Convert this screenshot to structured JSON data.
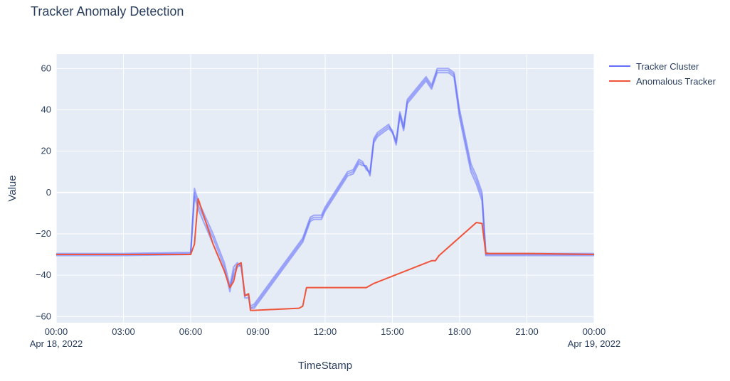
{
  "chart_data": {
    "type": "line",
    "title": "Tracker Anomaly Detection",
    "xlabel": "TimeStamp",
    "ylabel": "Value",
    "x_range": [
      "2022-04-18T00:00",
      "2022-04-19T00:00"
    ],
    "ylim": [
      -63,
      67
    ],
    "x_ticks": [
      {
        "value": "2022-04-18T00:00",
        "label": "00:00",
        "sublabel": "Apr 18, 2022"
      },
      {
        "value": "2022-04-18T03:00",
        "label": "03:00",
        "sublabel": ""
      },
      {
        "value": "2022-04-18T06:00",
        "label": "06:00",
        "sublabel": ""
      },
      {
        "value": "2022-04-18T09:00",
        "label": "09:00",
        "sublabel": ""
      },
      {
        "value": "2022-04-18T12:00",
        "label": "12:00",
        "sublabel": ""
      },
      {
        "value": "2022-04-18T15:00",
        "label": "15:00",
        "sublabel": ""
      },
      {
        "value": "2022-04-18T18:00",
        "label": "18:00",
        "sublabel": ""
      },
      {
        "value": "2022-04-18T21:00",
        "label": "21:00",
        "sublabel": ""
      },
      {
        "value": "2022-04-19T00:00",
        "label": "00:00",
        "sublabel": "Apr 19, 2022"
      }
    ],
    "y_ticks": [
      -60,
      -40,
      -20,
      0,
      20,
      40,
      60
    ],
    "grid": true,
    "legend_position": "top-right",
    "series": [
      {
        "name": "Tracker Cluster",
        "color": "#636efa",
        "opacity": 0.55,
        "lines": [
          {
            "x": [
              "2022-04-18T00:00",
              "2022-04-18T03:00",
              "2022-04-18T06:00",
              "2022-04-18T06:10",
              "2022-04-18T06:20",
              "2022-04-18T07:00",
              "2022-04-18T07:30",
              "2022-04-18T07:45",
              "2022-04-18T07:55",
              "2022-04-18T08:05",
              "2022-04-18T08:15",
              "2022-04-18T08:25",
              "2022-04-18T08:35",
              "2022-04-18T08:40",
              "2022-04-18T08:50",
              "2022-04-18T11:00",
              "2022-04-18T11:20",
              "2022-04-18T11:30",
              "2022-04-18T11:50",
              "2022-04-18T12:00",
              "2022-04-18T13:00",
              "2022-04-18T13:15",
              "2022-04-18T13:30",
              "2022-04-18T13:40",
              "2022-04-18T13:50",
              "2022-04-18T14:00",
              "2022-04-18T14:10",
              "2022-04-18T14:20",
              "2022-04-18T14:50",
              "2022-04-18T15:00",
              "2022-04-18T15:10",
              "2022-04-18T15:20",
              "2022-04-18T15:30",
              "2022-04-18T15:40",
              "2022-04-18T16:30",
              "2022-04-18T16:45",
              "2022-04-18T17:00",
              "2022-04-18T17:30",
              "2022-04-18T17:45",
              "2022-04-18T18:00",
              "2022-04-18T18:15",
              "2022-04-18T18:30",
              "2022-04-18T18:45",
              "2022-04-18T19:00",
              "2022-04-18T19:10",
              "2022-04-18T19:20",
              "2022-04-18T21:00",
              "2022-04-19T00:00"
            ],
            "y": [
              -29.5,
              -29.5,
              -29,
              2,
              -4,
              -20,
              -34,
              -45,
              -36,
              -34,
              -36,
              -49,
              -50,
              -55,
              -54,
              -22,
              -12,
              -11,
              -11,
              -7,
              10,
              11,
              16,
              15,
              11,
              10,
              26,
              29,
              33,
              29,
              25,
              39,
              32,
              45,
              56,
              52,
              60,
              60,
              58,
              40,
              27,
              14,
              8,
              0,
              -29,
              -29.5,
              -29.5,
              -29.5
            ]
          },
          {
            "x": [
              "2022-04-18T00:00",
              "2022-04-18T03:00",
              "2022-04-18T06:00",
              "2022-04-18T06:10",
              "2022-04-18T06:20",
              "2022-04-18T07:00",
              "2022-04-18T07:30",
              "2022-04-18T07:45",
              "2022-04-18T07:55",
              "2022-04-18T08:05",
              "2022-04-18T08:15",
              "2022-04-18T08:25",
              "2022-04-18T08:35",
              "2022-04-18T08:40",
              "2022-04-18T08:50",
              "2022-04-18T11:00",
              "2022-04-18T11:20",
              "2022-04-18T11:30",
              "2022-04-18T11:50",
              "2022-04-18T12:00",
              "2022-04-18T13:00",
              "2022-04-18T13:15",
              "2022-04-18T13:30",
              "2022-04-18T13:40",
              "2022-04-18T13:50",
              "2022-04-18T14:00",
              "2022-04-18T14:10",
              "2022-04-18T14:20",
              "2022-04-18T14:50",
              "2022-04-18T15:00",
              "2022-04-18T15:10",
              "2022-04-18T15:20",
              "2022-04-18T15:30",
              "2022-04-18T15:40",
              "2022-04-18T16:30",
              "2022-04-18T16:45",
              "2022-04-18T17:00",
              "2022-04-18T17:30",
              "2022-04-18T17:45",
              "2022-04-18T18:00",
              "2022-04-18T18:15",
              "2022-04-18T18:30",
              "2022-04-18T18:45",
              "2022-04-18T19:00",
              "2022-04-18T19:10",
              "2022-04-18T19:20",
              "2022-04-18T21:00",
              "2022-04-19T00:00"
            ],
            "y": [
              -30,
              -30,
              -29.5,
              0,
              -6,
              -22,
              -36,
              -48,
              -38,
              -35,
              -34,
              -50,
              -49,
              -56,
              -55,
              -23,
              -13,
              -12,
              -12,
              -8,
              9,
              10,
              15,
              14,
              12,
              9,
              25,
              28,
              32,
              30,
              24,
              38,
              31,
              44,
              55,
              51,
              59,
              59,
              57,
              38,
              25,
              12,
              6,
              -2,
              -30,
              -30,
              -30,
              -30
            ]
          },
          {
            "x": [
              "2022-04-18T00:00",
              "2022-04-18T03:00",
              "2022-04-18T06:00",
              "2022-04-18T06:10",
              "2022-04-18T06:20",
              "2022-04-18T07:00",
              "2022-04-18T07:30",
              "2022-04-18T07:45",
              "2022-04-18T07:55",
              "2022-04-18T08:05",
              "2022-04-18T08:15",
              "2022-04-18T08:25",
              "2022-04-18T08:35",
              "2022-04-18T08:40",
              "2022-04-18T08:50",
              "2022-04-18T11:00",
              "2022-04-18T11:20",
              "2022-04-18T11:30",
              "2022-04-18T11:50",
              "2022-04-18T12:00",
              "2022-04-18T13:00",
              "2022-04-18T13:15",
              "2022-04-18T13:30",
              "2022-04-18T13:40",
              "2022-04-18T13:50",
              "2022-04-18T14:00",
              "2022-04-18T14:10",
              "2022-04-18T14:20",
              "2022-04-18T14:50",
              "2022-04-18T15:00",
              "2022-04-18T15:10",
              "2022-04-18T15:20",
              "2022-04-18T15:30",
              "2022-04-18T15:40",
              "2022-04-18T16:30",
              "2022-04-18T16:45",
              "2022-04-18T17:00",
              "2022-04-18T17:30",
              "2022-04-18T17:45",
              "2022-04-18T18:00",
              "2022-04-18T18:15",
              "2022-04-18T18:30",
              "2022-04-18T18:45",
              "2022-04-18T19:00",
              "2022-04-18T19:10",
              "2022-04-18T19:20",
              "2022-04-18T21:00",
              "2022-04-19T00:00"
            ],
            "y": [
              -30.5,
              -30.5,
              -30,
              -2,
              -8,
              -25,
              -38,
              -46,
              -40,
              -36,
              -35,
              -51,
              -51,
              -56,
              -56,
              -24,
              -14,
              -13,
              -13,
              -9,
              8,
              9,
              14,
              13,
              13,
              8,
              24,
              27,
              31,
              29,
              23,
              37,
              30,
              43,
              54,
              50,
              58,
              58,
              56,
              36,
              23,
              10,
              4,
              -4,
              -30.5,
              -30.5,
              -30.5,
              -30.5
            ]
          }
        ]
      },
      {
        "name": "Anomalous Tracker",
        "color": "#ef553b",
        "opacity": 1,
        "lines": [
          {
            "x": [
              "2022-04-18T00:00",
              "2022-04-18T03:00",
              "2022-04-18T06:00",
              "2022-04-18T06:10",
              "2022-04-18T06:20",
              "2022-04-18T07:00",
              "2022-04-18T07:30",
              "2022-04-18T07:45",
              "2022-04-18T07:55",
              "2022-04-18T08:05",
              "2022-04-18T08:15",
              "2022-04-18T08:25",
              "2022-04-18T08:35",
              "2022-04-18T08:40",
              "2022-04-18T08:50",
              "2022-04-18T10:50",
              "2022-04-18T11:00",
              "2022-04-18T11:10",
              "2022-04-18T13:50",
              "2022-04-18T14:00",
              "2022-04-18T14:10",
              "2022-04-18T16:45",
              "2022-04-18T16:55",
              "2022-04-18T17:05",
              "2022-04-18T18:45",
              "2022-04-18T19:00",
              "2022-04-18T19:10",
              "2022-04-18T21:00",
              "2022-04-19T00:00"
            ],
            "y": [
              -30,
              -30,
              -30,
              -25,
              -3,
              -25,
              -38,
              -46,
              -43,
              -35,
              -34,
              -50,
              -49,
              -57,
              -57,
              -56,
              -55,
              -46,
              -46,
              -45,
              -44,
              -33,
              -33,
              -30.5,
              -14.5,
              -15,
              -29.5,
              -29.5,
              -30
            ]
          }
        ]
      }
    ]
  }
}
